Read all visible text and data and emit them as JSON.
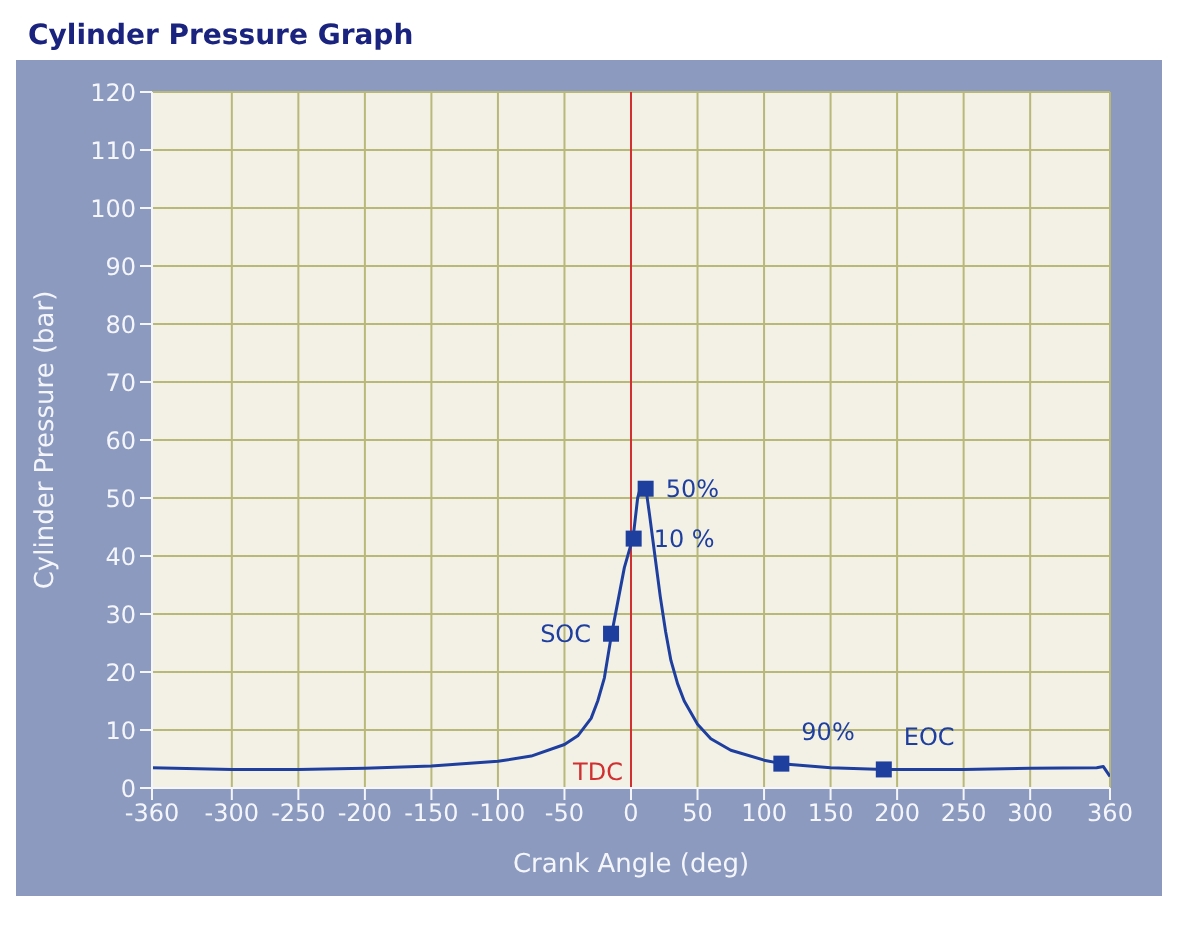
{
  "chart_data": {
    "type": "line",
    "title": "Cylinder Pressure Graph",
    "xlabel": "Crank Angle (deg)",
    "ylabel": "Cylinder Pressure (bar)",
    "series": [
      {
        "color": "#1f3f9f",
        "x": [
          -360,
          -300,
          -250,
          -200,
          -150,
          -100,
          -75,
          -50,
          -40,
          -30,
          -25,
          -20,
          -15,
          -10,
          -5,
          0,
          2,
          5,
          8,
          11,
          14,
          18,
          22,
          26,
          30,
          35,
          40,
          50,
          60,
          75,
          100,
          113,
          150,
          190,
          250,
          300,
          350,
          355,
          360
        ],
        "values": [
          3.5,
          3.2,
          3.2,
          3.4,
          3.8,
          4.6,
          5.5,
          7.5,
          9,
          12,
          15,
          19,
          26,
          32,
          38,
          42,
          44,
          50,
          52.5,
          52,
          47,
          40,
          33,
          27,
          22,
          18,
          15,
          11,
          8.5,
          6.5,
          4.8,
          4.2,
          3.5,
          3.2,
          3.2,
          3.4,
          3.5,
          3.7,
          2
        ]
      },
      {
        "type": "scatter",
        "color": "#1f3f9f",
        "marker": "square",
        "x": [
          -15,
          2,
          11,
          113,
          190
        ],
        "values": [
          26.6,
          43,
          51.6,
          4.2,
          3.2
        ]
      }
    ],
    "annotations": [
      {
        "text": "SOC",
        "x": -15,
        "y": 26.6
      },
      {
        "text": "10 %",
        "x": 2,
        "y": 43
      },
      {
        "text": "50%",
        "x": 11,
        "y": 51.6
      },
      {
        "text": "90%",
        "x": 113,
        "y": 4.2
      },
      {
        "text": "EOC",
        "x": 190,
        "y": 3.2
      }
    ],
    "ref_lines": [
      {
        "axis": "x",
        "value": 0,
        "label": "TDC",
        "color": "#d03030"
      }
    ],
    "xlim": [
      -360,
      360
    ],
    "xticks": [
      -360,
      -300,
      -250,
      -200,
      -150,
      -100,
      -50,
      0,
      50,
      100,
      150,
      200,
      250,
      300,
      360
    ],
    "ylim": [
      0,
      120
    ],
    "yticks": [
      0,
      10,
      20,
      30,
      40,
      50,
      60,
      70,
      80,
      90,
      100,
      110,
      120
    ],
    "grid": true
  }
}
